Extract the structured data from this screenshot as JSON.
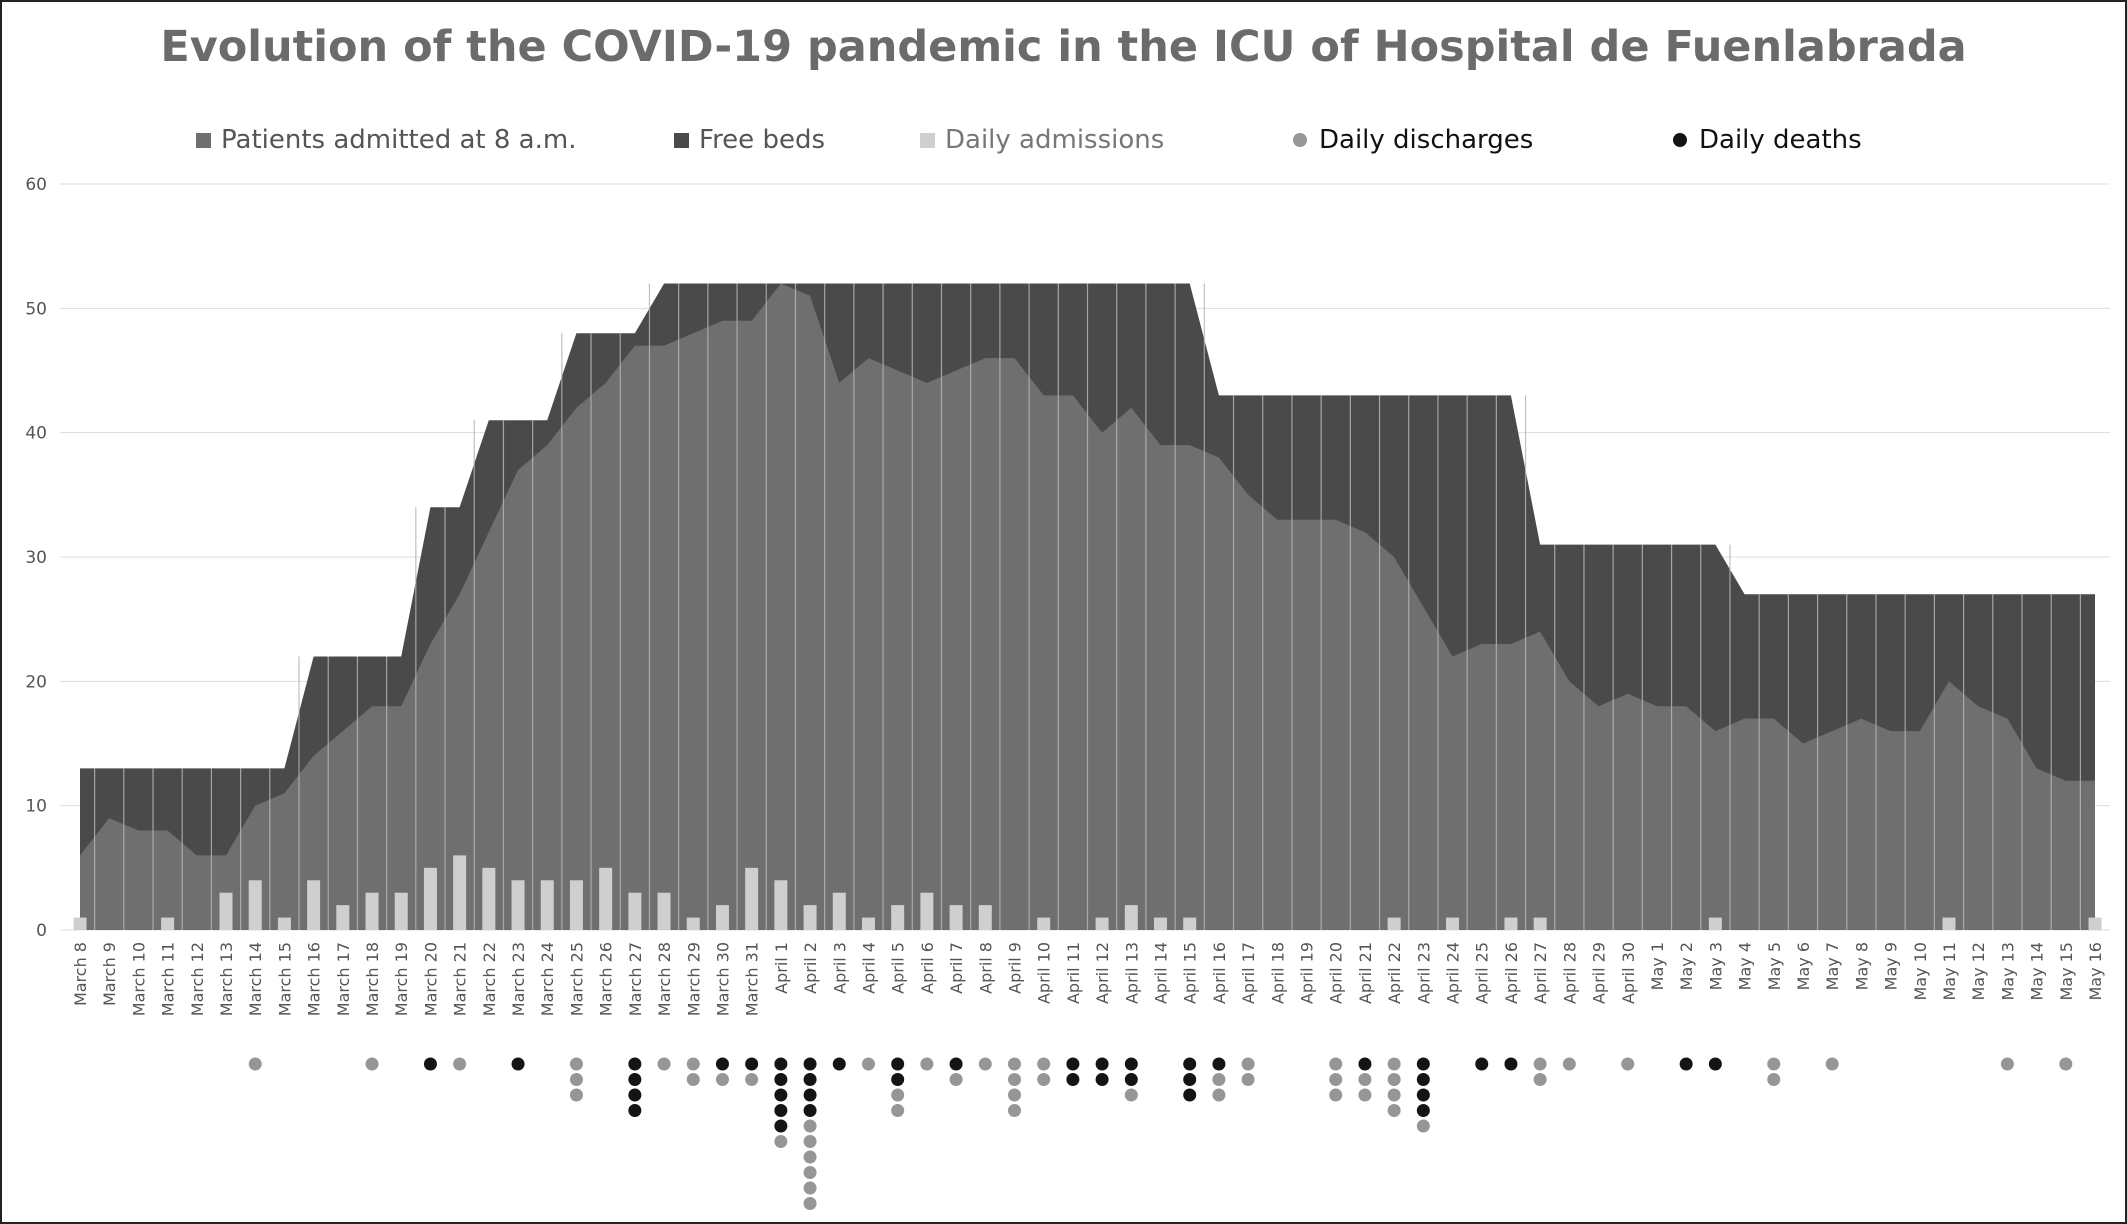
{
  "chart_data": {
    "type": "area",
    "title": "Evolution of the COVID-19 pandemic in the ICU of Hospital de Fuenlabrada",
    "xlabel": "",
    "ylabel": "",
    "ylim": [
      0,
      60
    ],
    "yticks": [
      0,
      10,
      20,
      30,
      40,
      50,
      60
    ],
    "grid": true,
    "legend_position": "top",
    "categories": [
      "March 8",
      "March 9",
      "March 10",
      "March 11",
      "March 12",
      "March 13",
      "March 14",
      "March 15",
      "March 16",
      "March 17",
      "March 18",
      "March 19",
      "March 20",
      "March 21",
      "March 22",
      "March 23",
      "March 24",
      "March 25",
      "March 26",
      "March 27",
      "March 28",
      "March 29",
      "March 30",
      "March 31",
      "April 1",
      "April 2",
      "April 3",
      "April 4",
      "April 5",
      "April 6",
      "April 7",
      "April 8",
      "April 9",
      "April 10",
      "April 11",
      "April 12",
      "April 13",
      "April 14",
      "April 15",
      "April 16",
      "April 17",
      "April 18",
      "April 19",
      "April 20",
      "April 21",
      "April 22",
      "April 23",
      "April 24",
      "April 25",
      "April 26",
      "April 27",
      "April 28",
      "April 29",
      "April 30",
      "May 1",
      "May 2",
      "May 3",
      "May 4",
      "May 5",
      "May 6",
      "May 7",
      "May 8",
      "May 9",
      "May 10",
      "May 11",
      "May 12",
      "May 13",
      "May 14",
      "May 15",
      "May 16"
    ],
    "series": [
      {
        "name": "Patients admitted at 8 a.m.",
        "kind": "area",
        "color": "#6f6f6f",
        "values": [
          6,
          9,
          8,
          8,
          6,
          6,
          10,
          11,
          14,
          16,
          18,
          18,
          23,
          27,
          32,
          37,
          39,
          42,
          44,
          47,
          47,
          48,
          49,
          49,
          52,
          51,
          44,
          46,
          45,
          44,
          45,
          46,
          46,
          43,
          43,
          40,
          42,
          39,
          39,
          38,
          35,
          33,
          33,
          33,
          32,
          30,
          26,
          22,
          23,
          23,
          24,
          20,
          18,
          19,
          18,
          18,
          16,
          17,
          17,
          15,
          16,
          17,
          16,
          16,
          20,
          18,
          17,
          13,
          12,
          12
        ]
      },
      {
        "name": "Free beds",
        "kind": "area",
        "color": "#4a4a4a",
        "values": [
          7,
          4,
          5,
          5,
          7,
          7,
          3,
          2,
          8,
          6,
          4,
          4,
          11,
          7,
          9,
          4,
          2,
          6,
          4,
          1,
          5,
          4,
          3,
          3,
          0,
          1,
          8,
          6,
          7,
          8,
          7,
          6,
          6,
          9,
          9,
          12,
          10,
          13,
          13,
          5,
          8,
          10,
          10,
          10,
          11,
          13,
          17,
          21,
          20,
          20,
          7,
          11,
          13,
          12,
          13,
          13,
          15,
          10,
          10,
          12,
          11,
          10,
          11,
          11,
          7,
          9,
          10,
          14,
          15,
          15
        ]
      },
      {
        "name": "Daily admissions",
        "kind": "bar",
        "color": "#cfcfcf",
        "values": [
          1,
          0,
          0,
          1,
          0,
          3,
          4,
          1,
          4,
          2,
          3,
          3,
          5,
          6,
          5,
          4,
          4,
          4,
          5,
          3,
          3,
          1,
          2,
          5,
          4,
          2,
          3,
          1,
          2,
          3,
          2,
          2,
          0,
          1,
          0,
          1,
          2,
          1,
          1,
          0,
          0,
          0,
          0,
          0,
          0,
          1,
          0,
          1,
          0,
          1,
          1,
          0,
          0,
          0,
          0,
          0,
          1,
          0,
          0,
          0,
          0,
          0,
          0,
          0,
          1,
          0,
          0,
          0,
          0,
          1
        ]
      },
      {
        "name": "Daily discharges",
        "kind": "dot",
        "color": "#969696",
        "values": [
          0,
          0,
          0,
          0,
          0,
          0,
          1,
          0,
          0,
          0,
          1,
          0,
          0,
          1,
          0,
          0,
          0,
          3,
          0,
          0,
          1,
          2,
          1,
          1,
          1,
          6,
          0,
          1,
          2,
          1,
          1,
          1,
          4,
          2,
          0,
          0,
          1,
          0,
          0,
          2,
          2,
          0,
          0,
          3,
          2,
          4,
          1,
          0,
          0,
          0,
          2,
          1,
          0,
          1,
          0,
          0,
          0,
          0,
          2,
          0,
          1,
          0,
          0,
          0,
          0,
          0,
          1,
          0,
          1,
          0
        ]
      },
      {
        "name": "Daily deaths",
        "kind": "dot",
        "color": "#141414",
        "values": [
          0,
          0,
          0,
          0,
          0,
          0,
          0,
          0,
          0,
          0,
          0,
          0,
          1,
          0,
          0,
          1,
          0,
          0,
          0,
          4,
          0,
          0,
          1,
          1,
          5,
          4,
          1,
          0,
          2,
          0,
          1,
          0,
          0,
          0,
          2,
          2,
          2,
          0,
          3,
          1,
          0,
          0,
          0,
          0,
          1,
          0,
          4,
          0,
          1,
          1,
          0,
          0,
          0,
          0,
          0,
          1,
          1,
          0,
          0,
          0,
          0,
          0,
          0,
          0,
          0,
          0,
          0,
          0,
          0,
          0
        ]
      }
    ]
  }
}
